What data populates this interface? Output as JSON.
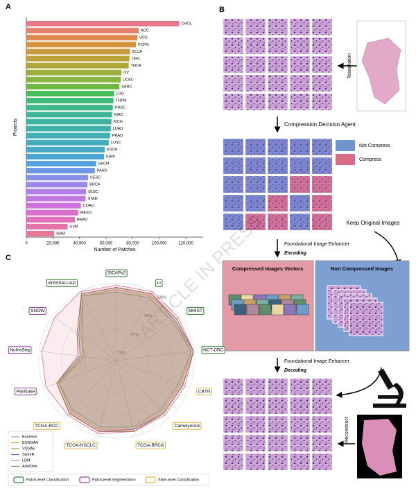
{
  "chart_data": [
    {
      "type": "bar",
      "orientation": "horizontal",
      "label": "A",
      "ylabel": "Projects",
      "xlabel": "Number of Patches",
      "categories": [
        "CHOL",
        "ACC",
        "UCS",
        "PCPG",
        "BLCA",
        "LIHC",
        "THCA",
        "OV",
        "UCEC",
        "SARC",
        "LGG",
        "THYM",
        "HNSC",
        "KIRC",
        "KICH",
        "LUAD",
        "PRAD",
        "LUSC",
        "ESCA",
        "KIRP",
        "SKCM",
        "PAAD",
        "CESC",
        "BRCA",
        "DLBC",
        "STAD",
        "COAD",
        "MESO",
        "READ",
        "UVM",
        "GBM"
      ],
      "values": [
        115000,
        84500,
        83500,
        82500,
        78000,
        77500,
        77000,
        71500,
        71000,
        70000,
        66000,
        65500,
        65000,
        64500,
        64000,
        63500,
        63000,
        62000,
        59000,
        58500,
        52500,
        51500,
        46500,
        46000,
        45000,
        44500,
        41000,
        39000,
        36500,
        31000,
        21000
      ],
      "colors": [
        "#e8788a",
        "#e5806b",
        "#de8a4f",
        "#d49440",
        "#c99b3c",
        "#bca23a",
        "#aea83b",
        "#9dae3c",
        "#88b43f",
        "#6db944",
        "#49bc5a",
        "#3dba78",
        "#3eb78a",
        "#3fb597",
        "#3fb3a2",
        "#40b1ab",
        "#42afb4",
        "#44acbd",
        "#47a9c7",
        "#4ba5d2",
        "#56a0de",
        "#6e98e6",
        "#878fea",
        "#9c88ea",
        "#ae80e8",
        "#bf78e2",
        "#cd72d8",
        "#d86fca",
        "#e070b8",
        "#e573a7",
        "#e87797"
      ],
      "xlim": [
        0,
        133000
      ],
      "xticks": [
        0,
        {
          "value": 20000,
          "label": "20,000"
        },
        {
          "value": 40000,
          "label": "40,000"
        },
        {
          "value": 60000,
          "label": "60,000"
        },
        {
          "value": 80000,
          "label": "80,000"
        },
        {
          "value": 100000,
          "label": "100,000"
        },
        {
          "value": 120000,
          "label": "120,000"
        }
      ]
    },
    {
      "type": "radar",
      "label": "C",
      "axes": [
        "SICAPv2",
        "LI",
        "MHIST",
        "NCT-CRC",
        "CBTN",
        "Camelyon16",
        "TCGA-BRCA",
        "TCGA-NSCLC",
        "TCGA-RCC",
        "PanNuke",
        "NuInsSeg",
        "SNOW",
        "WSSS4LUAD"
      ],
      "groups": [
        {
          "name": "Patch-level Classification",
          "color": "#2e7d32"
        },
        {
          "name": "Patch-level Segmentation",
          "color": "#8e3a9e"
        },
        {
          "name": "Slide-level Classification",
          "color": "#e0b43a"
        }
      ],
      "axis_group": [
        0,
        0,
        0,
        0,
        2,
        2,
        2,
        2,
        2,
        1,
        1,
        1,
        0
      ],
      "rlim": [
        66,
        100
      ],
      "rticks": [
        {
          "value": 70,
          "label": "70%"
        },
        {
          "value": 80,
          "label": "80%"
        },
        {
          "value": 90,
          "label": "90%"
        },
        {
          "value": 100,
          "label": "100%"
        }
      ],
      "series": [
        {
          "name": "Baseline",
          "color": "#9e9e9e",
          "values": [
            98,
            99,
            98,
            100,
            97,
            97,
            98,
            98,
            97,
            94,
            82,
            86,
            99
          ]
        },
        {
          "name": "ESRGAN",
          "color": "#e8963c",
          "values": [
            97,
            98,
            97,
            99,
            96,
            96,
            97,
            97,
            96,
            93,
            80,
            85,
            98
          ]
        },
        {
          "name": "VQVAE",
          "color": "#6ab04c",
          "values": [
            96,
            97,
            96,
            99,
            95,
            95,
            96,
            96,
            95,
            93,
            81,
            84,
            98
          ]
        },
        {
          "name": "SwinIR",
          "color": "#7a6fc8",
          "values": [
            98,
            99,
            97,
            100,
            97,
            97,
            97,
            98,
            97,
            94,
            82,
            86,
            99
          ]
        },
        {
          "name": "LDM",
          "color": "#e07a8c",
          "values": [
            99,
            100,
            99,
            100,
            98,
            98,
            98,
            99,
            98,
            99,
            99,
            99,
            100
          ]
        },
        {
          "name": "AdaSlide",
          "color": "#a0673c",
          "values": [
            98,
            99,
            98,
            100,
            97,
            97,
            98,
            98,
            97,
            94,
            83,
            87,
            99
          ]
        }
      ]
    }
  ],
  "diagram": {
    "label": "B",
    "tessellation": "Tessellation",
    "agent": "Compression Decision Agent",
    "legend": [
      "Not Compress",
      "Compress"
    ],
    "keep": "Keep Original Images",
    "encoder": "Foundational Image Enhancer",
    "encoding": "Encoding",
    "boxes": [
      "Compressed Images Vectors",
      "Non Compressed Images"
    ],
    "decoder": "Foundational Image Enhancer",
    "decoding": "Decoding",
    "reconstruct": "Reconstruct"
  },
  "watermark": "ARTICLE IN PRESS"
}
